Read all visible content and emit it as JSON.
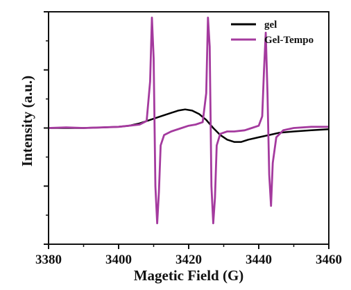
{
  "chart_data": {
    "type": "line",
    "xlabel": "Magetic Field (G)",
    "ylabel": "Intensity (a.u.)",
    "xlim": [
      3380,
      3460
    ],
    "ylim": [
      -1.0,
      1.0
    ],
    "x_ticks": [
      "3380",
      "3400",
      "3420",
      "3440",
      "3460"
    ],
    "y_ticks_labeled": false,
    "grid": false,
    "legend_position": "top-right",
    "series": [
      {
        "name": "gel",
        "color": "#000000",
        "x": [
          3380,
          3385,
          3390,
          3395,
          3400,
          3403,
          3406,
          3409,
          3412,
          3415,
          3417,
          3419,
          3421,
          3423,
          3425,
          3427,
          3429,
          3431,
          3433,
          3435,
          3437,
          3440,
          3443,
          3446,
          3450,
          3455,
          3460
        ],
        "y": [
          0.0,
          0.0,
          0.0,
          0.005,
          0.01,
          0.02,
          0.04,
          0.07,
          0.1,
          0.13,
          0.15,
          0.16,
          0.15,
          0.12,
          0.07,
          0.0,
          -0.06,
          -0.1,
          -0.12,
          -0.12,
          -0.1,
          -0.08,
          -0.06,
          -0.04,
          -0.03,
          -0.02,
          -0.01
        ]
      },
      {
        "name": "Gel-Tempo",
        "color": "#a43a9e",
        "x": [
          3380,
          3385,
          3390,
          3395,
          3400,
          3403,
          3406,
          3408,
          3409,
          3409.5,
          3410,
          3410.5,
          3411,
          3411.5,
          3412,
          3413,
          3415,
          3418,
          3420,
          3422,
          3424,
          3425,
          3425.5,
          3426,
          3426.5,
          3427,
          3427.5,
          3428,
          3429,
          3431,
          3433,
          3436,
          3438,
          3440,
          3441,
          3441.5,
          3442,
          3442.5,
          3443,
          3443.5,
          3444,
          3445,
          3447,
          3450,
          3455,
          3460
        ],
        "y": [
          0.0,
          0.005,
          0.0,
          0.005,
          0.01,
          0.02,
          0.03,
          0.06,
          0.4,
          0.95,
          0.6,
          -0.5,
          -0.82,
          -0.55,
          -0.15,
          -0.06,
          -0.03,
          0.0,
          0.02,
          0.03,
          0.05,
          0.3,
          0.95,
          0.7,
          -0.5,
          -0.82,
          -0.6,
          -0.15,
          -0.05,
          -0.03,
          -0.03,
          -0.02,
          0.0,
          0.02,
          0.1,
          0.5,
          0.82,
          0.3,
          -0.4,
          -0.67,
          -0.3,
          -0.08,
          -0.02,
          0.0,
          0.01,
          0.01
        ]
      }
    ]
  }
}
